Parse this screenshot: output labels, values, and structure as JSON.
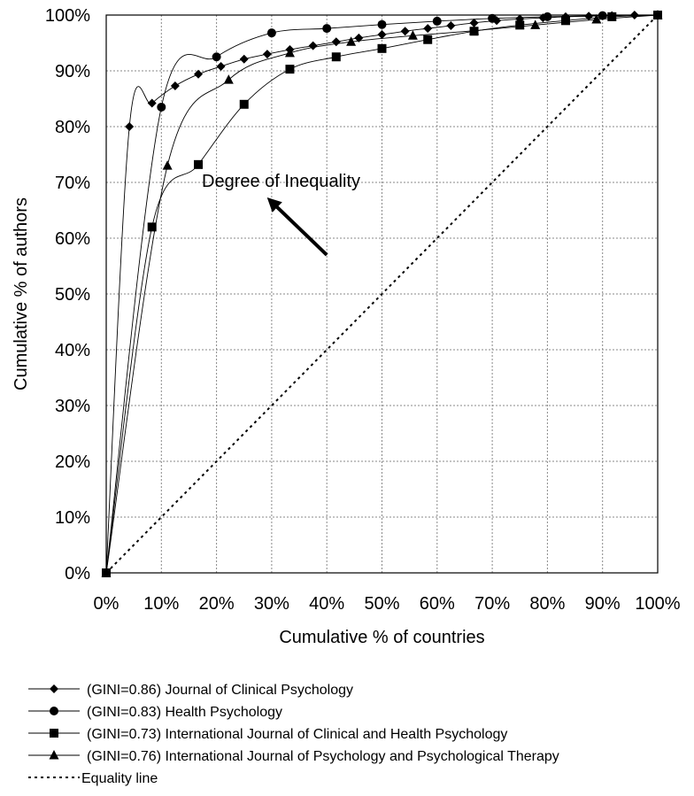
{
  "chart_data": {
    "type": "line",
    "title": "",
    "xlabel": "Cumulative % of countries",
    "ylabel": "Cumulative % of authors",
    "xlim": [
      0,
      100
    ],
    "ylim": [
      0,
      100
    ],
    "x_ticks": [
      "0%",
      "10%",
      "20%",
      "30%",
      "40%",
      "50%",
      "60%",
      "70%",
      "80%",
      "90%",
      "100%"
    ],
    "y_ticks": [
      "0%",
      "10%",
      "20%",
      "30%",
      "40%",
      "50%",
      "60%",
      "70%",
      "80%",
      "90%",
      "100%"
    ],
    "grid": true,
    "legend_position": "bottom",
    "annotation": {
      "text": "Degree of Inequality",
      "arrow_from": [
        40,
        57
      ],
      "arrow_to": [
        30,
        66.5
      ]
    },
    "series": [
      {
        "name": "(GINI=0.86) Journal of Clinical Psychology",
        "marker": "diamond",
        "x": [
          0,
          4.2,
          8.3,
          12.5,
          16.7,
          20.8,
          25,
          29.2,
          33.3,
          37.5,
          41.7,
          45.8,
          50,
          54.2,
          58.3,
          62.5,
          66.7,
          70.8,
          75,
          79.2,
          83.3,
          87.5,
          91.7,
          95.8,
          100
        ],
        "y": [
          0,
          80,
          84.2,
          87.3,
          89.4,
          90.8,
          92.1,
          93,
          93.8,
          94.5,
          95.2,
          95.9,
          96.5,
          97.1,
          97.6,
          98.1,
          98.6,
          99,
          99.3,
          99.5,
          99.7,
          99.8,
          99.9,
          100,
          100
        ]
      },
      {
        "name": "(GINI=0.83) Health Psychology",
        "marker": "circle",
        "x": [
          0,
          10,
          20,
          30,
          40,
          50,
          60,
          70,
          80,
          90,
          100
        ],
        "y": [
          0,
          83.5,
          92.5,
          96.8,
          97.6,
          98.3,
          98.9,
          99.4,
          99.7,
          99.9,
          100
        ]
      },
      {
        "name": "(GINI=0.73) International Journal of Clinical and Health Psychology",
        "marker": "square",
        "x": [
          0,
          8.3,
          16.7,
          25,
          33.3,
          41.7,
          50,
          58.3,
          66.7,
          75,
          83.3,
          91.7,
          100
        ],
        "y": [
          0,
          62,
          73.2,
          84,
          90.3,
          92.5,
          94,
          95.6,
          97.1,
          98.2,
          99,
          99.7,
          100
        ]
      },
      {
        "name": "(GINI=0.76) International Journal of Psychology and Psychological Therapy",
        "marker": "triangle",
        "x": [
          0,
          11.1,
          22.2,
          33.3,
          44.4,
          55.6,
          66.7,
          77.8,
          88.9,
          100
        ],
        "y": [
          0,
          73,
          88.4,
          93.2,
          95.2,
          96.3,
          97.2,
          98.2,
          99.2,
          100
        ]
      },
      {
        "name": "Equality line",
        "marker": "none",
        "dashed": true,
        "x": [
          0,
          100
        ],
        "y": [
          0,
          100
        ]
      }
    ]
  }
}
